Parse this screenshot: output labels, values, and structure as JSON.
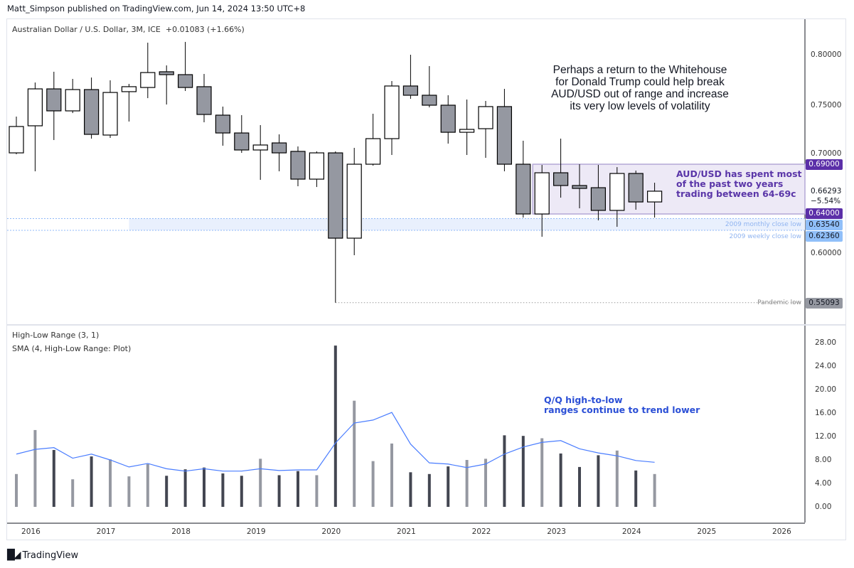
{
  "header": {
    "published": "Matt_Simpson published on TradingView.com, Jun 14, 2024 13:50 UTC+8"
  },
  "symbol_legend": {
    "title": "Australian Dollar / U.S. Dollar, 3M, ICE",
    "change": "+0.01083 (+1.66%)"
  },
  "indicator_legend": {
    "line1": "High-Low Range (3, 1)",
    "line2": "SMA (4, High-Low Range: Plot)"
  },
  "annotations": {
    "trump": [
      "Perhaps a return to the Whitehouse",
      "for Donald Trump could help break",
      "AUD/USD out of range and increase",
      "its very low levels of volatility"
    ],
    "range": [
      "AUD/USD has spent most",
      "of the past two years",
      "trading between 64-69c"
    ],
    "volatility": [
      "Q/Q high-to-low",
      "ranges continue to trend lower"
    ],
    "monthly_low": "2009 monthly close low",
    "weekly_low": "2009 weekly close low",
    "pandemic_low": "Pandemic low"
  },
  "price_tags": {
    "range_top": "0.69000",
    "range_bottom": "0.64000",
    "monthly_low": "0.63540",
    "weekly_low": "0.62360",
    "pandemic_low": "0.55093",
    "last": "0.66293",
    "last_change": "−5.54%"
  },
  "logo": {
    "text": "TradingView"
  },
  "colors": {
    "up_fill": "#ffffff",
    "down_fill": "#9598a1",
    "bar_down": "#434651",
    "bar_up": "#9598a1",
    "sma": "#4a7dff",
    "range_box": "#ede9f6",
    "range_tag": "#5b2fa8",
    "zone_tag": "#90bff9",
    "pandemic_tag": "#9598a1"
  },
  "chart_data": [
    {
      "type": "candlestick",
      "title": "Australian Dollar / U.S. Dollar, 3M, ICE",
      "y_ticks": [
        "0.80000",
        "0.75000",
        "0.70000",
        "0.60000"
      ],
      "x_ticks": [
        "2016",
        "2017",
        "2018",
        "2019",
        "2020",
        "2021",
        "2022",
        "2023",
        "2024",
        "2025",
        "2026"
      ],
      "x": [
        "2015-10",
        "2016-01",
        "2016-04",
        "2016-07",
        "2016-10",
        "2017-01",
        "2017-04",
        "2017-07",
        "2017-10",
        "2018-01",
        "2018-04",
        "2018-07",
        "2018-10",
        "2019-01",
        "2019-04",
        "2019-07",
        "2019-10",
        "2020-01",
        "2020-04",
        "2020-07",
        "2020-10",
        "2021-01",
        "2021-04",
        "2021-07",
        "2021-10",
        "2022-01",
        "2022-04",
        "2022-07",
        "2022-10",
        "2023-01",
        "2023-04",
        "2023-07",
        "2023-10",
        "2024-01",
        "2024-04"
      ],
      "ohlc": [
        [
          0.7014,
          0.7379,
          0.7,
          0.7279
        ],
        [
          0.7286,
          0.7721,
          0.6829,
          0.7657
        ],
        [
          0.7657,
          0.7829,
          0.7143,
          0.7436
        ],
        [
          0.7436,
          0.7757,
          0.7414,
          0.765
        ],
        [
          0.765,
          0.7771,
          0.7157,
          0.72
        ],
        [
          0.7193,
          0.7743,
          0.7164,
          0.7621
        ],
        [
          0.7629,
          0.7707,
          0.7329,
          0.7679
        ],
        [
          0.7671,
          0.8121,
          0.7564,
          0.7821
        ],
        [
          0.7829,
          0.7893,
          0.75,
          0.78
        ],
        [
          0.78,
          0.8129,
          0.7636,
          0.7671
        ],
        [
          0.7679,
          0.7807,
          0.7321,
          0.74
        ],
        [
          0.7393,
          0.7479,
          0.7086,
          0.7214
        ],
        [
          0.7214,
          0.7393,
          0.7014,
          0.7043
        ],
        [
          0.7043,
          0.7293,
          0.6743,
          0.7093
        ],
        [
          0.7114,
          0.72,
          0.6829,
          0.7014
        ],
        [
          0.7029,
          0.7079,
          0.6679,
          0.675
        ],
        [
          0.675,
          0.7029,
          0.6671,
          0.7014
        ],
        [
          0.7014,
          0.7029,
          0.5509,
          0.6157
        ],
        [
          0.6157,
          0.7064,
          0.5986,
          0.69
        ],
        [
          0.69,
          0.7407,
          0.6886,
          0.7157
        ],
        [
          0.7157,
          0.7736,
          0.6993,
          0.7686
        ],
        [
          0.7686,
          0.8,
          0.7557,
          0.7593
        ],
        [
          0.7593,
          0.7886,
          0.7471,
          0.7493
        ],
        [
          0.7493,
          0.7593,
          0.7107,
          0.7221
        ],
        [
          0.7221,
          0.755,
          0.6993,
          0.725
        ],
        [
          0.7257,
          0.7536,
          0.6964,
          0.7479
        ],
        [
          0.7479,
          0.7657,
          0.6829,
          0.69
        ],
        [
          0.69,
          0.7136,
          0.6364,
          0.64
        ],
        [
          0.64,
          0.6893,
          0.6171,
          0.6814
        ],
        [
          0.6814,
          0.7157,
          0.6564,
          0.6686
        ],
        [
          0.6686,
          0.69,
          0.6457,
          0.6657
        ],
        [
          0.6664,
          0.6893,
          0.6336,
          0.6436
        ],
        [
          0.6436,
          0.6871,
          0.6271,
          0.6807
        ],
        [
          0.6807,
          0.6836,
          0.6443,
          0.6521
        ],
        [
          0.6521,
          0.6714,
          0.6364,
          0.6629
        ]
      ],
      "levels": {
        "range_top": 0.69,
        "range_bottom": 0.64,
        "monthly_low": 0.6354,
        "weekly_low": 0.6236,
        "pandemic_low": 0.55093,
        "range_start": "2022-10",
        "zone_start": "2017-04",
        "pandemic_date": "2020-01"
      },
      "ylim": [
        0.545,
        0.835
      ]
    },
    {
      "type": "bar",
      "title": "High-Low Range (3, 1)",
      "y_ticks": [
        "28.00",
        "24.00",
        "20.00",
        "16.00",
        "12.00",
        "8.00",
        "4.00",
        "0.00"
      ],
      "ylim": [
        0,
        28
      ],
      "series": [
        {
          "name": "High-Low Range (3, 1)",
          "type": "bar",
          "values": [
            5.6,
            13.1,
            9.7,
            4.7,
            8.6,
            8.1,
            5.2,
            7.3,
            5.3,
            6.4,
            6.7,
            5.7,
            5.3,
            8.2,
            5.4,
            6.1,
            5.4,
            27.5,
            18.1,
            7.8,
            10.8,
            5.9,
            5.6,
            6.9,
            8.0,
            8.2,
            12.2,
            12.1,
            11.7,
            9.1,
            6.8,
            8.8,
            9.6,
            6.2,
            5.6
          ]
        },
        {
          "name": "SMA (4, High-Low Range: Plot)",
          "type": "line",
          "values": [
            9.0,
            9.8,
            10.1,
            8.3,
            9.0,
            8.0,
            6.8,
            7.4,
            6.5,
            6.1,
            6.5,
            6.1,
            6.1,
            6.5,
            6.2,
            6.3,
            6.3,
            10.9,
            14.3,
            14.8,
            16.1,
            10.7,
            7.5,
            7.3,
            6.7,
            7.3,
            9.0,
            10.2,
            11.0,
            11.3,
            9.9,
            9.2,
            8.7,
            7.9,
            7.6
          ]
        }
      ]
    }
  ]
}
